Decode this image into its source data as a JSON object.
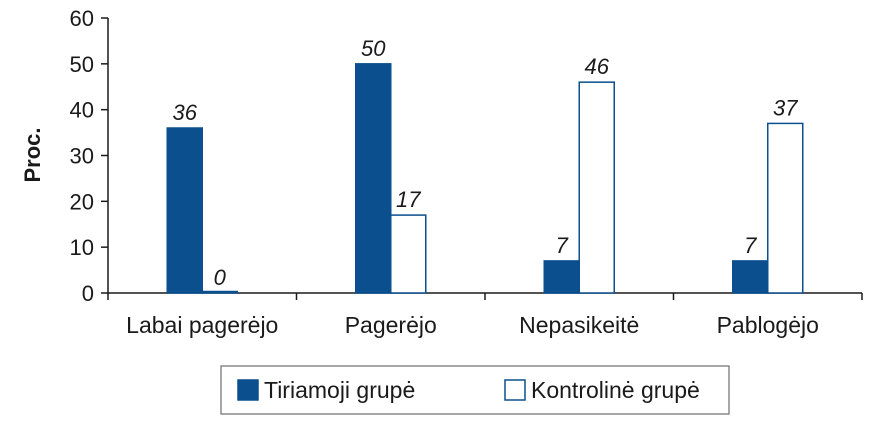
{
  "chart_data": {
    "type": "bar",
    "ylabel": "Proc.",
    "ylim": [
      0,
      60
    ],
    "yticks": [
      "0",
      "10",
      "20",
      "30",
      "40",
      "50",
      "60"
    ],
    "categories": [
      "Labai pagerėjo",
      "Pagerėjo",
      "Nepasikeitė",
      "Pablogėjo"
    ],
    "series": [
      {
        "name": "Tiriamoji grupė",
        "values": [
          36,
          50,
          7,
          7
        ],
        "labels": [
          "36",
          "50",
          "7",
          "7"
        ],
        "fill": "#0b4f8e",
        "stroke": "#0b4f8e"
      },
      {
        "name": "Kontrolinė grupė",
        "values": [
          0,
          17,
          46,
          37
        ],
        "labels": [
          "0",
          "17",
          "46",
          "37"
        ],
        "fill": "#ffffff",
        "stroke": "#0b4f8e"
      }
    ],
    "legend": "bottom-center",
    "grid": false
  }
}
